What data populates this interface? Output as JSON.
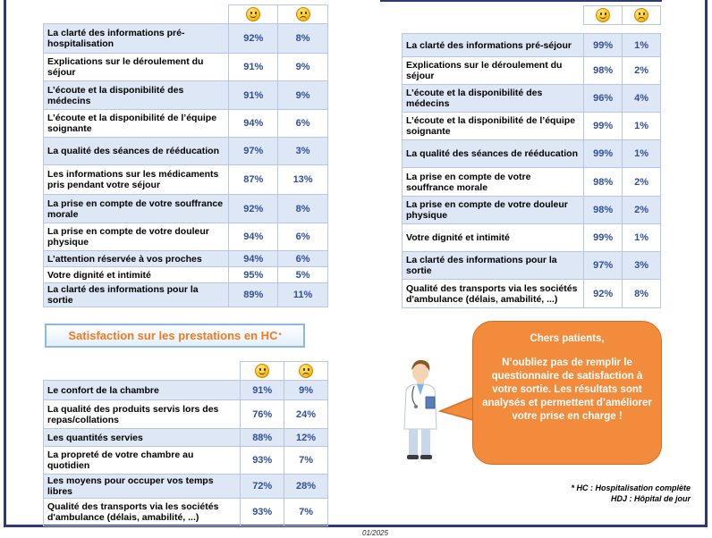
{
  "colors": {
    "accent": "#2f4f99",
    "row_alt": "#dde7f6",
    "bubble": "#f38b3d",
    "section_title": "#f07a1e",
    "frame": "#2e3a78"
  },
  "icons": {
    "satisfied": "smiley-satisfied-icon",
    "unsatisfied": "smiley-unsatisfied-icon"
  },
  "table_left": {
    "rows": [
      {
        "label": "La clarté des informations pré-hospitalisation",
        "satisfied": "92%",
        "unsatisfied": "8%"
      },
      {
        "label": "Explications sur le déroulement du séjour",
        "satisfied": "91%",
        "unsatisfied": "9%"
      },
      {
        "label": "L’écoute et la disponibilité des médecins",
        "satisfied": "91%",
        "unsatisfied": "9%"
      },
      {
        "label": "L’écoute et la disponibilité de l’équipe soignante",
        "satisfied": "94%",
        "unsatisfied": "6%"
      },
      {
        "label": "La qualité des séances de rééducation",
        "satisfied": "97%",
        "unsatisfied": "3%"
      },
      {
        "label": "Les informations sur les médicaments pris pendant votre séjour",
        "satisfied": "87%",
        "unsatisfied": "13%"
      },
      {
        "label": "La prise en compte de votre souffrance morale",
        "satisfied": "92%",
        "unsatisfied": "8%"
      },
      {
        "label": "La prise en compte de votre douleur physique",
        "satisfied": "94%",
        "unsatisfied": "6%"
      },
      {
        "label": "L’attention réservée à vos proches",
        "satisfied": "94%",
        "unsatisfied": "6%"
      },
      {
        "label": "Votre dignité et intimité",
        "satisfied": "95%",
        "unsatisfied": "5%"
      },
      {
        "label": "La clarté des informations pour la sortie",
        "satisfied": "89%",
        "unsatisfied": "11%"
      }
    ]
  },
  "section_title": {
    "text": "Satisfaction sur les prestations en HC",
    "marker": "*"
  },
  "table_hc": {
    "rows": [
      {
        "label": "Le confort de la chambre",
        "satisfied": "91%",
        "unsatisfied": "9%"
      },
      {
        "label": "La qualité des produits servis lors des repas/collations",
        "satisfied": "76%",
        "unsatisfied": "24%"
      },
      {
        "label": "Les quantités servies",
        "satisfied": "88%",
        "unsatisfied": "12%"
      },
      {
        "label": "La propreté de votre chambre au quotidien",
        "satisfied": "93%",
        "unsatisfied": "7%"
      },
      {
        "label": "Les moyens pour occuper vos temps libres",
        "satisfied": "72%",
        "unsatisfied": "28%"
      },
      {
        "label": "Qualité des transports via les sociétés d'ambulance (délais, amabilité, ...)",
        "satisfied": "93%",
        "unsatisfied": "7%"
      }
    ]
  },
  "table_right": {
    "rows": [
      {
        "label": "La clarté des informations pré-séjour",
        "satisfied": "99%",
        "unsatisfied": "1%"
      },
      {
        "label": "Explications sur le déroulement du séjour",
        "satisfied": "98%",
        "unsatisfied": "2%"
      },
      {
        "label": "L’écoute et la disponibilité des médecins",
        "satisfied": "96%",
        "unsatisfied": "4%"
      },
      {
        "label": "L’écoute et la disponibilité de l’équipe soignante",
        "satisfied": "99%",
        "unsatisfied": "1%"
      },
      {
        "label": "La qualité des séances de rééducation",
        "satisfied": "99%",
        "unsatisfied": "1%"
      },
      {
        "label": "La prise en compte de votre souffrance morale",
        "satisfied": "98%",
        "unsatisfied": "2%"
      },
      {
        "label": "La prise en compte de votre douleur physique",
        "satisfied": "98%",
        "unsatisfied": "2%"
      },
      {
        "label": "Votre dignité et intimité",
        "satisfied": "99%",
        "unsatisfied": "1%"
      },
      {
        "label": "La clarté des informations pour la sortie",
        "satisfied": "97%",
        "unsatisfied": "3%"
      },
      {
        "label": "Qualité des transports via les sociétés d'ambulance (délais, amabilité, ...)",
        "satisfied": "92%",
        "unsatisfied": "8%"
      }
    ]
  },
  "bubble": {
    "greeting": "Chers patients,",
    "message": "N’oubliez pas de remplir le questionnaire de satisfaction à votre sortie. Les résultats sont analysés et permettent d’améliorer votre prise en charge !"
  },
  "notes": {
    "hc": "* HC : Hospitalisation complète",
    "hdj": "HDJ : Hôpital de jour"
  },
  "footer": {
    "date": "01/2025"
  }
}
